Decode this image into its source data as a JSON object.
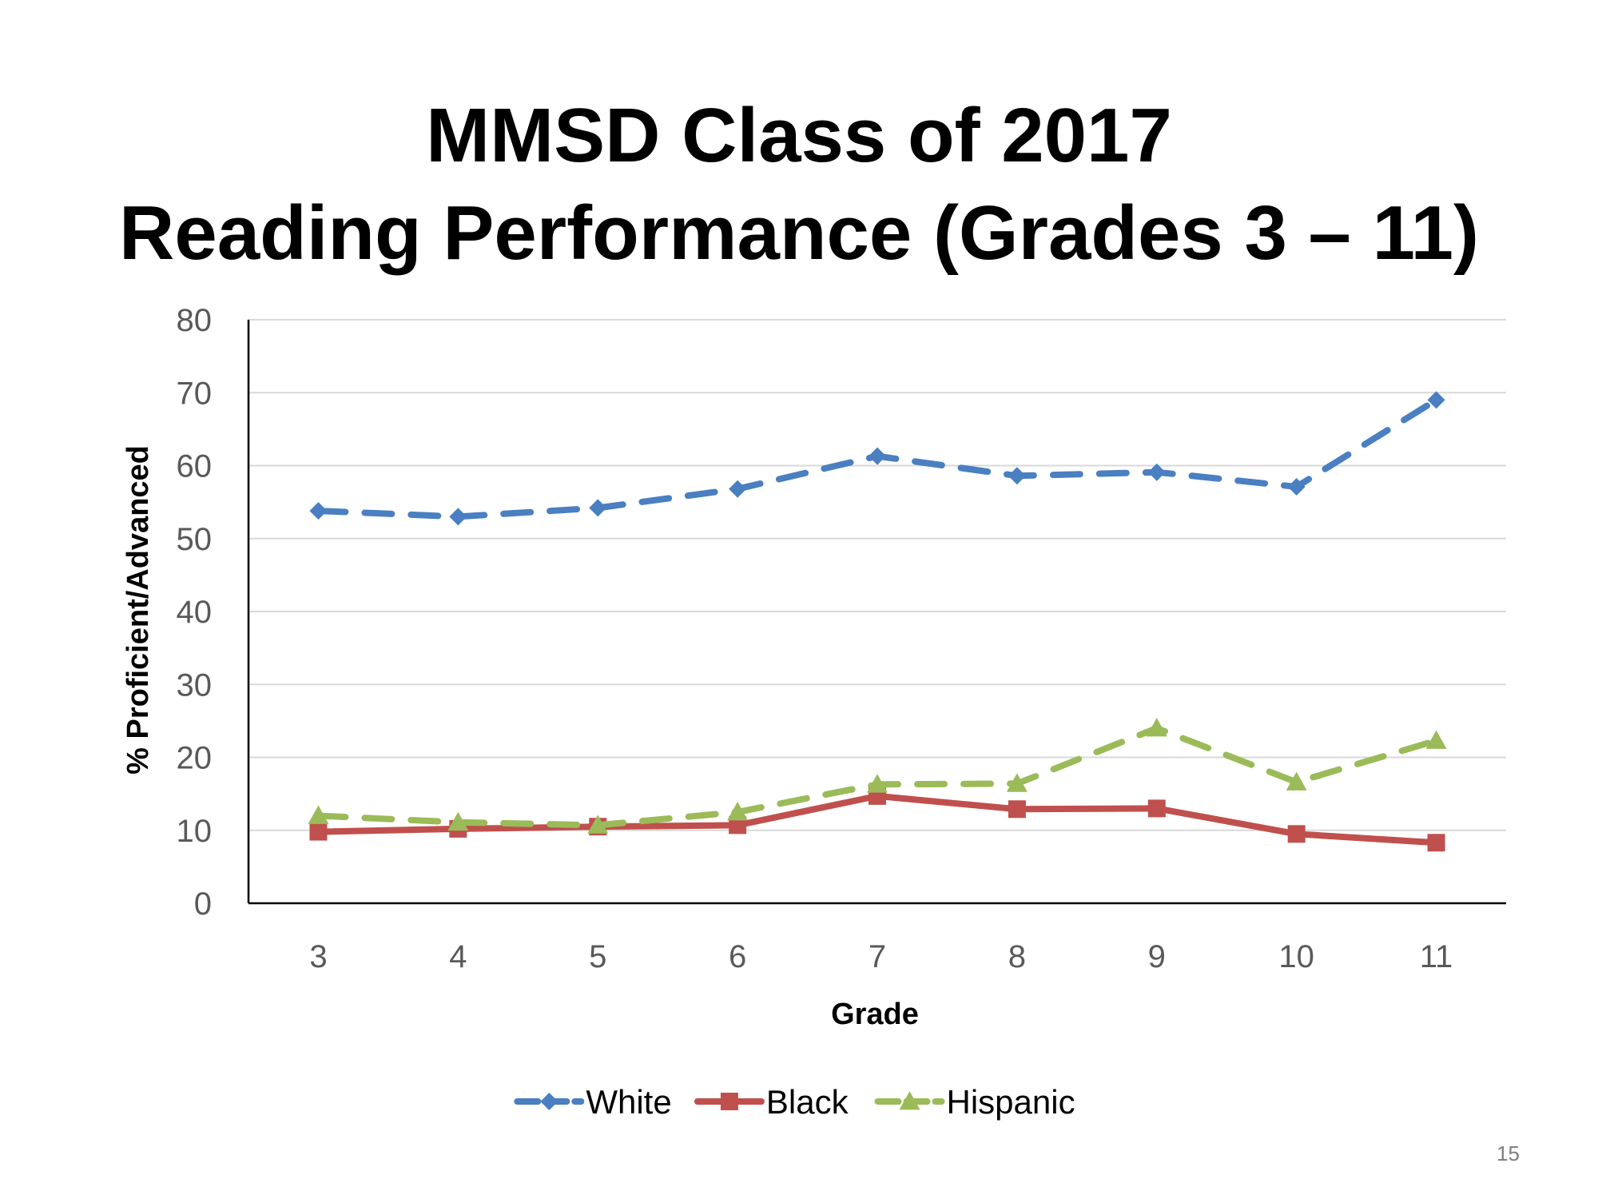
{
  "slide": {
    "title_line1": "MMSD Class of 2017",
    "title_line2": "Reading Performance (Grades 3 – 11)",
    "page_number": "15"
  },
  "chart_data": {
    "type": "line",
    "categories": [
      "3",
      "4",
      "5",
      "6",
      "7",
      "8",
      "9",
      "10",
      "11"
    ],
    "series": [
      {
        "name": "White",
        "color": "#4a7fc1",
        "marker": "diamond",
        "dash": "dashed",
        "values": [
          53.8,
          53.0,
          54.2,
          56.8,
          61.3,
          58.6,
          59.1,
          57.1,
          69.0
        ]
      },
      {
        "name": "Black",
        "color": "#c0504d",
        "marker": "square",
        "dash": "solid",
        "values": [
          9.8,
          10.2,
          10.5,
          10.7,
          14.7,
          12.9,
          13.0,
          9.5,
          8.3
        ]
      },
      {
        "name": "Hispanic",
        "color": "#9bbb59",
        "marker": "triangle",
        "dash": "dashed",
        "values": [
          12.0,
          11.1,
          10.7,
          12.5,
          16.3,
          16.4,
          24.0,
          16.6,
          22.3
        ]
      }
    ],
    "xlabel": "Grade",
    "ylabel": "% Proficient/Advanced",
    "ylim": [
      0,
      80
    ],
    "yticks": [
      "0",
      "10",
      "20",
      "30",
      "40",
      "50",
      "60",
      "70",
      "80"
    ],
    "grid": true,
    "legend_position": "bottom"
  }
}
